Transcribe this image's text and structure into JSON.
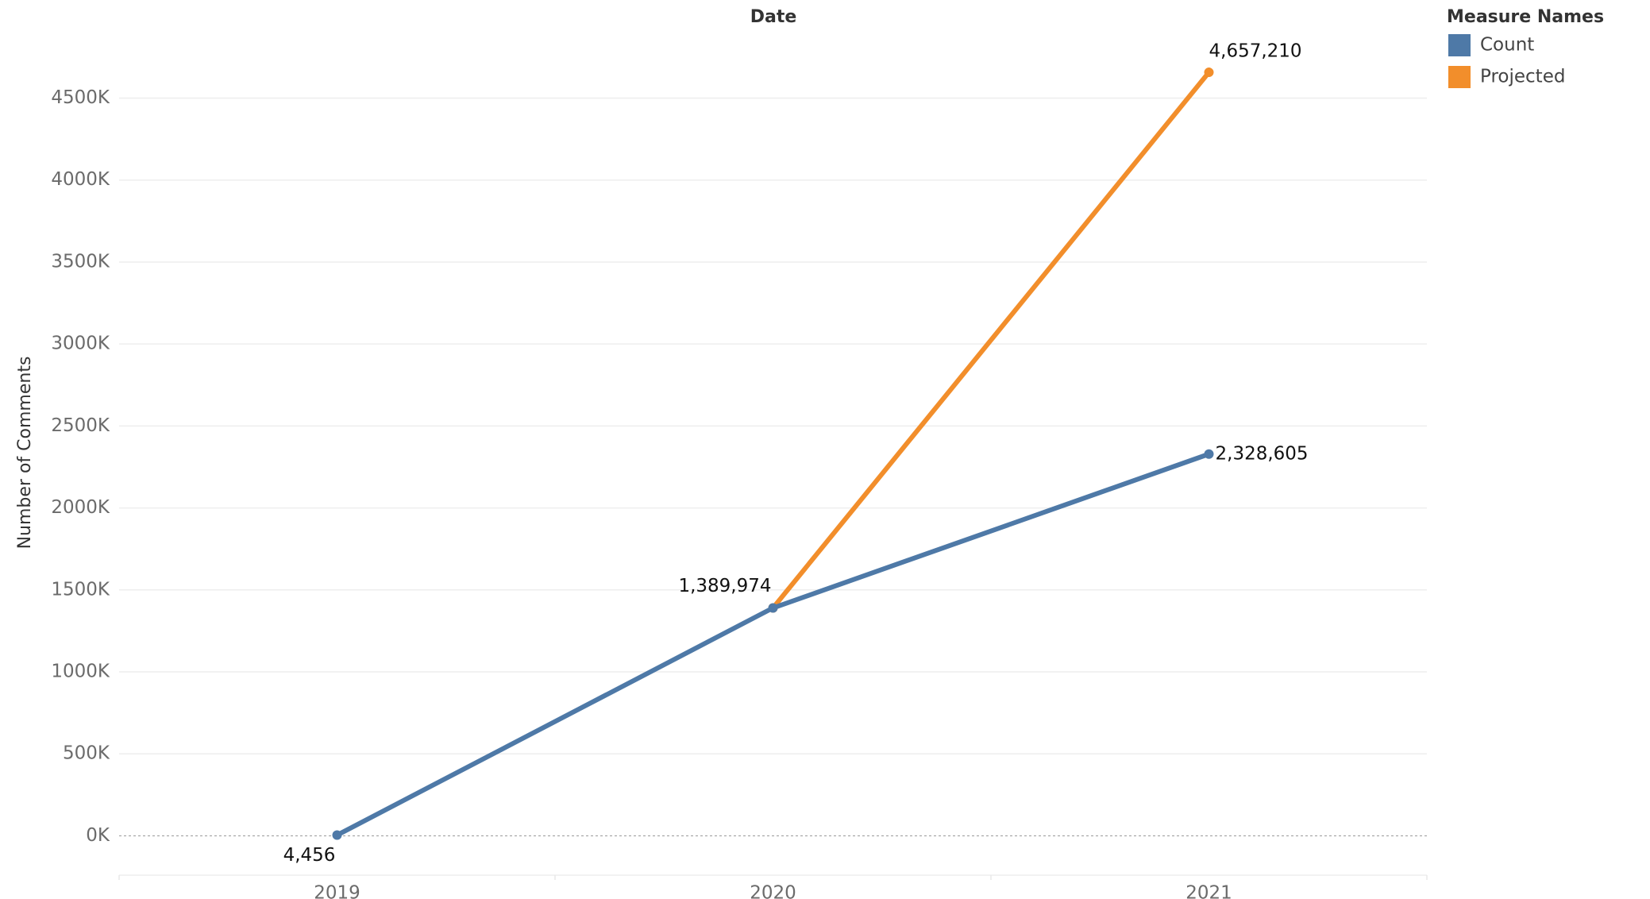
{
  "chart_data": {
    "type": "line",
    "x_title": "Date",
    "y_title": "Number of Comments",
    "legend_title": "Measure Names",
    "legend_position": "top-right",
    "categories": [
      "2019",
      "2020",
      "2021"
    ],
    "series": [
      {
        "name": "Count",
        "color": "#4e79a7",
        "values": [
          4456,
          1389974,
          2328605
        ],
        "value_labels": [
          "4,456",
          "1,389,974",
          "2,328,605"
        ]
      },
      {
        "name": "Projected",
        "color": "#f28e2b",
        "values": [
          null,
          1389974,
          4657210
        ],
        "value_labels": [
          null,
          null,
          "4,657,210"
        ]
      }
    ],
    "ylim": [
      -240000,
      4890000
    ],
    "yticks": [
      {
        "value": 0,
        "label": "0K"
      },
      {
        "value": 500000,
        "label": "500K"
      },
      {
        "value": 1000000,
        "label": "1000K"
      },
      {
        "value": 1500000,
        "label": "1500K"
      },
      {
        "value": 2000000,
        "label": "2000K"
      },
      {
        "value": 2500000,
        "label": "2500K"
      },
      {
        "value": 3000000,
        "label": "3000K"
      },
      {
        "value": 3500000,
        "label": "3500K"
      },
      {
        "value": 4000000,
        "label": "4000K"
      },
      {
        "value": 4500000,
        "label": "4500K"
      }
    ],
    "grid": true
  }
}
